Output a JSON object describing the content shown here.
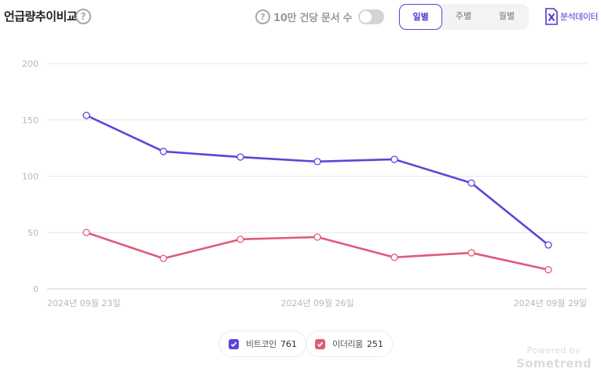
{
  "header": {
    "title": "언급량추이비교",
    "toggle_label": "10만 건당 문서 수",
    "periods": [
      "일별",
      "주별",
      "월별"
    ],
    "export_label": "분석데이터"
  },
  "legend": [
    {
      "name": "비트코인",
      "count": "761"
    },
    {
      "name": "이더리움",
      "count": "251"
    }
  ],
  "brand": {
    "small": "Powered by",
    "name": "Sometrend"
  },
  "colors": {
    "accent": "#4b3ad0",
    "bitcoin": "#5b46d8",
    "ethereum": "#e05a78"
  },
  "chart_data": {
    "type": "line",
    "x": [
      "2024-09-23",
      "2024-09-24",
      "2024-09-25",
      "2024-09-26",
      "2024-09-27",
      "2024-09-28",
      "2024-09-29"
    ],
    "xtick_labels": [
      {
        "index": 0,
        "label": "2024년 09월 23일"
      },
      {
        "index": 3,
        "label": "2024년 09월 26일"
      },
      {
        "index": 6,
        "label": "2024년 09월 29일"
      }
    ],
    "yticks": [
      0,
      50,
      100,
      150,
      200
    ],
    "ylim": [
      0,
      200
    ],
    "grid": true,
    "legend_position": "bottom",
    "series": [
      {
        "name": "비트코인",
        "color": "#5b46d8",
        "values": [
          154,
          122,
          117,
          113,
          115,
          94,
          39
        ]
      },
      {
        "name": "이더리움",
        "color": "#e05a78",
        "values": [
          50,
          27,
          44,
          46,
          28,
          32,
          17
        ]
      }
    ]
  }
}
